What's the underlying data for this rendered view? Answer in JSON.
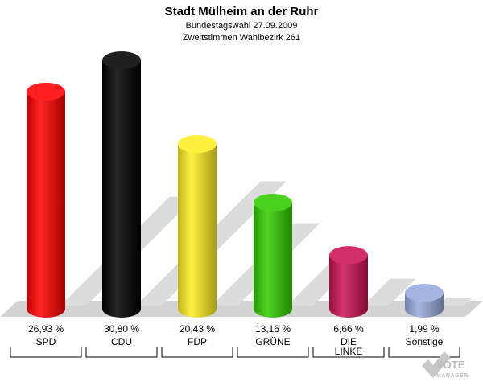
{
  "header": {
    "title": "Stadt Mülheim an der Ruhr",
    "subtitle1": "Bundestagswahl 27.09.2009",
    "subtitle2": "Zweitstimmen Wahlbezirk 261"
  },
  "chart_data": {
    "type": "bar",
    "title": "Stadt Mülheim an der Ruhr",
    "subtitle": [
      "Bundestagswahl 27.09.2009",
      "Zweitstimmen Wahlbezirk 261"
    ],
    "categories": [
      "SPD",
      "CDU",
      "FDP",
      "GRÜNE",
      "DIE LINKE",
      "Sonstige"
    ],
    "category_lines": [
      [
        "SPD"
      ],
      [
        "CDU"
      ],
      [
        "FDP"
      ],
      [
        "GRÜNE"
      ],
      [
        "DIE",
        "LINKE"
      ],
      [
        "Sonstige"
      ]
    ],
    "values": [
      26.93,
      30.8,
      20.43,
      13.16,
      6.66,
      1.99
    ],
    "value_labels": [
      "26,93 %",
      "30,80 %",
      "20,43 %",
      "13,16 %",
      "6,66 %",
      "1,99 %"
    ],
    "colors": [
      "#ff0000",
      "#000000",
      "#ffee22",
      "#33cc00",
      "#cc1155",
      "#99aadd"
    ],
    "ylim": [
      0,
      30.8
    ],
    "grid": false,
    "legend": "none"
  },
  "logo": {
    "line1": "VOTE",
    "line2": "MANAGER"
  }
}
